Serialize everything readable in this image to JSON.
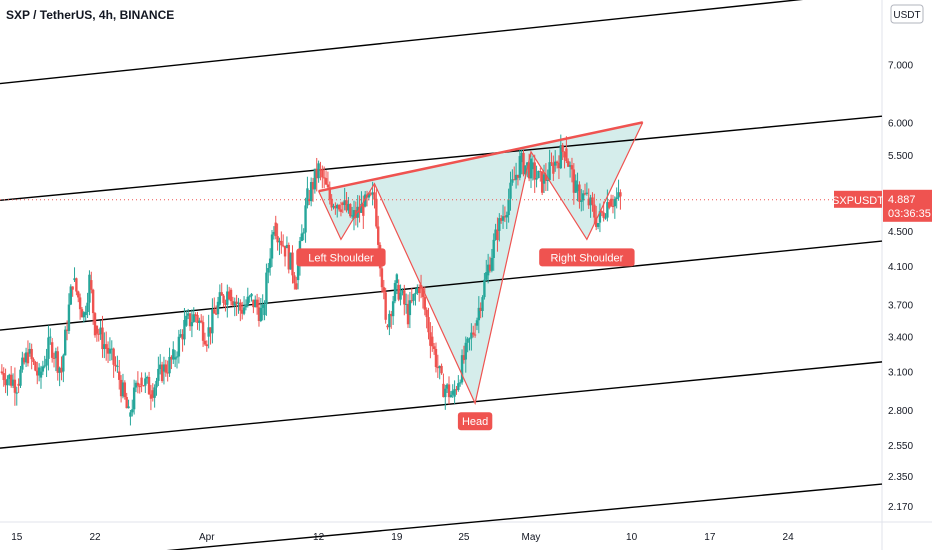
{
  "header": {
    "title": "SXP / TetherUS, 4h, BINANCE"
  },
  "price_axis": {
    "currency": "USDT"
  },
  "last_price": {
    "symbol": "SXPUSDT",
    "price": "4.887",
    "countdown": "03:36:35"
  },
  "colors": {
    "up": "#26a69a",
    "down": "#ef5350",
    "pattern_fill": "#b2dfdb",
    "annotation": "#ef5350",
    "channel": "#000000"
  },
  "chart_data": {
    "type": "candlestick",
    "title": "SXP / TetherUS, 4h, BINANCE",
    "y_scale": "log",
    "ylim": [
      2.08,
      8.3
    ],
    "y_ticks": [
      "7.000",
      "6.000",
      "5.500",
      "4.500",
      "4.100",
      "3.700",
      "3.400",
      "3.100",
      "2.800",
      "2.550",
      "2.350",
      "2.170"
    ],
    "y_tick_values": [
      7.0,
      6.0,
      5.5,
      4.5,
      4.1,
      3.7,
      3.4,
      3.1,
      2.8,
      2.55,
      2.35,
      2.17
    ],
    "x_ticks": [
      "15",
      "22",
      "Apr",
      "12",
      "19",
      "25",
      "May",
      "10",
      "17",
      "24"
    ],
    "x_tick_days": [
      15,
      22,
      32,
      42,
      49,
      55,
      61,
      70,
      77,
      84
    ],
    "x_range_days": [
      13.5,
      92.4
    ],
    "price_series": [
      [
        "13.5",
        3.1
      ],
      [
        "15",
        3.0
      ],
      [
        "16",
        3.25
      ],
      [
        "17",
        3.05
      ],
      [
        "18",
        3.35
      ],
      [
        "19",
        3.1
      ],
      [
        "20",
        3.95
      ],
      [
        "21",
        3.6
      ],
      [
        "21.5",
        3.95
      ],
      [
        "22",
        3.5
      ],
      [
        "23",
        3.3
      ],
      [
        "24",
        3.1
      ],
      [
        "25",
        2.75
      ],
      [
        "26",
        3.05
      ],
      [
        "27",
        2.95
      ],
      [
        "28",
        3.1
      ],
      [
        "29",
        3.2
      ],
      [
        "30",
        3.5
      ],
      [
        "31",
        3.6
      ],
      [
        "32",
        3.4
      ],
      [
        "33",
        3.7
      ],
      [
        "34",
        3.85
      ],
      [
        "35",
        3.65
      ],
      [
        "36",
        3.75
      ],
      [
        "37",
        3.6
      ],
      [
        "38",
        4.6
      ],
      [
        "39",
        4.3
      ],
      [
        "40",
        3.95
      ],
      [
        "41",
        4.9
      ],
      [
        "42",
        5.3
      ],
      [
        "43",
        4.9
      ],
      [
        "44",
        4.85
      ],
      [
        "45",
        4.65
      ],
      [
        "46",
        4.8
      ],
      [
        "47",
        4.9
      ],
      [
        "48",
        3.5
      ],
      [
        "49",
        3.9
      ],
      [
        "50",
        3.6
      ],
      [
        "51",
        3.9
      ],
      [
        "52",
        3.4
      ],
      [
        "53",
        3.0
      ],
      [
        "54",
        2.9
      ],
      [
        "55",
        3.2
      ],
      [
        "56",
        3.5
      ],
      [
        "57",
        4.0
      ],
      [
        "58",
        4.5
      ],
      [
        "59",
        4.9
      ],
      [
        "60",
        5.4
      ],
      [
        "61",
        5.3
      ],
      [
        "62",
        5.1
      ],
      [
        "63",
        5.35
      ],
      [
        "64",
        5.6
      ],
      [
        "65",
        5.0
      ],
      [
        "66",
        4.9
      ],
      [
        "67",
        4.6
      ],
      [
        "68",
        4.9
      ],
      [
        "69",
        4.887
      ]
    ],
    "channel_lines": [
      {
        "start": [
          "13.5",
          6.65
        ],
        "end": [
          "92.4",
          8.5
        ]
      },
      {
        "start": [
          "13.5",
          4.88
        ],
        "end": [
          "92.4",
          6.1
        ]
      },
      {
        "start": [
          "13.5",
          3.46
        ],
        "end": [
          "92.4",
          4.38
        ]
      },
      {
        "start": [
          "13.5",
          2.53
        ],
        "end": [
          "92.4",
          3.18
        ]
      },
      {
        "start": [
          "13.5",
          1.85
        ],
        "end": [
          "92.4",
          2.3
        ]
      }
    ],
    "pattern": {
      "type": "head-and-shoulders (inverse)",
      "points": [
        [
          "42",
          5.0
        ],
        [
          "44",
          4.4
        ],
        [
          "47",
          5.1
        ],
        [
          "56",
          2.85
        ],
        [
          "61",
          5.55
        ],
        [
          "66",
          4.4
        ],
        [
          "71",
          6.0
        ]
      ],
      "neckline": [
        [
          "42",
          5.0
        ],
        [
          "71",
          6.0
        ]
      ]
    },
    "annotations": [
      {
        "label": "Left Shoulder",
        "at": [
          "44",
          4.4
        ]
      },
      {
        "label": "Head",
        "at": [
          "56",
          2.85
        ]
      },
      {
        "label": "Right Shoulder",
        "at": [
          "66",
          4.4
        ]
      }
    ]
  }
}
